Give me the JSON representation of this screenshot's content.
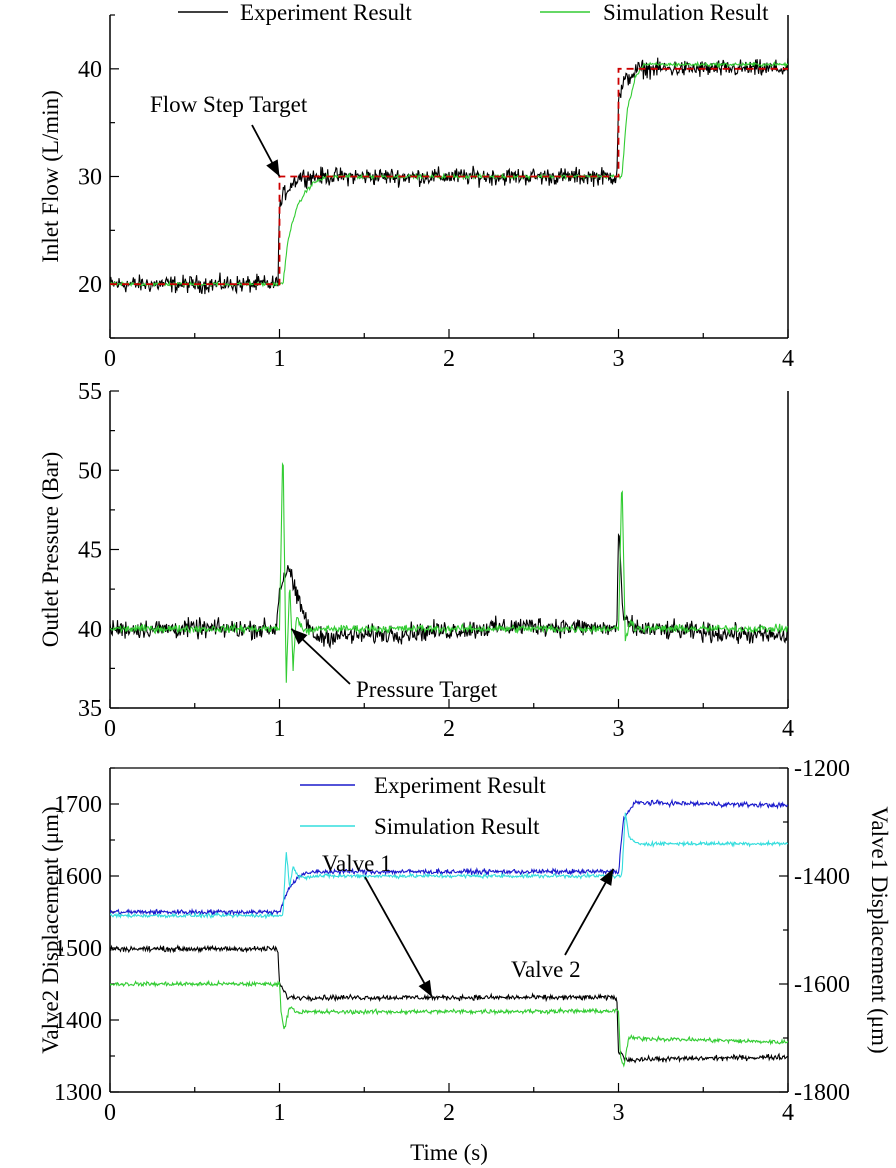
{
  "chart_data": [
    {
      "type": "line",
      "xlabel": "",
      "ylabel": "Inlet Flow (L/min)",
      "xlim": [
        0,
        4
      ],
      "ylim": [
        15,
        45
      ],
      "xticks": [
        "0",
        "1",
        "2",
        "3",
        "4"
      ],
      "yticks": [
        "20",
        "30",
        "40"
      ],
      "grid": false,
      "legend_position": "top",
      "legend": [
        "Experiment Result",
        "Simulation Result"
      ],
      "series": [
        {
          "name": "Experiment Result",
          "color": "#000000",
          "x": [
            0,
            0.99,
            1.0,
            1.03,
            1.08,
            1.12,
            2.99,
            3.0,
            3.03,
            3.08,
            3.12,
            4.0
          ],
          "y": [
            20,
            20,
            27,
            28.5,
            29.5,
            30,
            30,
            37,
            38.7,
            39.5,
            40,
            40
          ]
        },
        {
          "name": "Simulation Result",
          "color": "#33cc33",
          "x": [
            0,
            1.02,
            1.05,
            1.08,
            1.1,
            1.15,
            1.2,
            1.28,
            3.02,
            3.05,
            3.1,
            3.15,
            4.0
          ],
          "y": [
            20,
            20,
            24,
            26,
            27,
            28.5,
            29.4,
            30,
            30,
            36,
            39.3,
            40.4,
            40.4
          ]
        },
        {
          "name": "Flow Step Target",
          "color": "#cc0000",
          "style": "dashed",
          "x": [
            0,
            1.0,
            1.0,
            1.1,
            3.0,
            3.0,
            3.1,
            4.0
          ],
          "y": [
            20,
            20,
            30,
            30,
            30,
            40,
            40,
            40
          ]
        }
      ],
      "annotations": [
        {
          "text": "Flow Step Target",
          "points_to": {
            "x": 1.0,
            "y": 30
          }
        }
      ]
    },
    {
      "type": "line",
      "xlabel": "",
      "ylabel": "Outlet Pressure (Bar)",
      "xlim": [
        0,
        4
      ],
      "ylim": [
        35,
        55
      ],
      "xticks": [
        "0",
        "1",
        "2",
        "3",
        "4"
      ],
      "yticks": [
        "35",
        "40",
        "45",
        "50",
        "55"
      ],
      "grid": false,
      "series": [
        {
          "name": "Experiment Result",
          "color": "#000000",
          "x": [
            0,
            0.98,
            1.0,
            1.05,
            1.1,
            1.2,
            1.5,
            2.5,
            2.99,
            3.0,
            3.03,
            3.1,
            4.0
          ],
          "y": [
            40,
            40,
            42.5,
            44,
            42,
            39.5,
            39.6,
            40.2,
            40,
            46,
            40.5,
            40,
            39.5
          ]
        },
        {
          "name": "Simulation Result",
          "color": "#33cc33",
          "x": [
            0,
            1.0,
            1.02,
            1.04,
            1.06,
            1.08,
            1.1,
            1.15,
            1.25,
            3.0,
            3.02,
            3.04,
            3.07,
            3.1,
            4.0
          ],
          "y": [
            40,
            40,
            51.8,
            36.5,
            43,
            37.5,
            40.8,
            39.8,
            40,
            40,
            49.7,
            39.2,
            40.6,
            40,
            40
          ]
        }
      ],
      "annotations": [
        {
          "text": "Pressure Target",
          "points_to": {
            "x": 1.07,
            "y": 40
          }
        }
      ]
    },
    {
      "type": "line",
      "xlabel": "Time (s)",
      "ylabel": "Valve2 Displacement (μm)",
      "y2label": "Valve1 Displacement (μm)",
      "xlim": [
        0,
        4
      ],
      "ylim": [
        1300,
        1750
      ],
      "y2lim": [
        -1800,
        -1200
      ],
      "xticks": [
        "0",
        "1",
        "2",
        "3",
        "4"
      ],
      "yticks": [
        "1300",
        "1400",
        "1500",
        "1600",
        "1700"
      ],
      "y2ticks": [
        "-1800",
        "-1600",
        "-1400",
        "-1200"
      ],
      "grid": false,
      "legend_position": "top-center",
      "legend": [
        "Experiment Result",
        "Simulation Result"
      ],
      "series": [
        {
          "name": "Experiment Result",
          "axis": "left",
          "color": "#1a1acc",
          "x": [
            0,
            1.0,
            1.05,
            1.12,
            1.2,
            3.0,
            3.03,
            3.1,
            4.0
          ],
          "y": [
            1550,
            1550,
            1582,
            1600,
            1606,
            1606,
            1680,
            1702,
            1698
          ]
        },
        {
          "name": "Simulation Result",
          "axis": "left",
          "color": "#33dddd",
          "x": [
            0,
            1.02,
            1.04,
            1.06,
            1.08,
            1.12,
            1.2,
            3.02,
            3.04,
            3.06,
            3.1,
            4.0
          ],
          "y": [
            1545,
            1545,
            1635,
            1585,
            1612,
            1598,
            1600,
            1600,
            1690,
            1655,
            1645,
            1645
          ]
        },
        {
          "name": "Valve 1 Experiment",
          "axis": "right",
          "color": "#000000",
          "x": [
            0,
            0.99,
            1.0,
            1.05,
            2.99,
            3.0,
            3.05,
            4.0
          ],
          "y": [
            -1535,
            -1535,
            -1600,
            -1625,
            -1625,
            -1725,
            -1740,
            -1735
          ]
        },
        {
          "name": "Valve 1 Simulation",
          "axis": "right",
          "color": "#33cc33",
          "x": [
            0,
            1.0,
            1.01,
            1.03,
            1.06,
            1.1,
            3.0,
            3.01,
            3.03,
            3.06,
            4.0
          ],
          "y": [
            -1600,
            -1600,
            -1655,
            -1685,
            -1640,
            -1652,
            -1650,
            -1730,
            -1755,
            -1700,
            -1708
          ]
        }
      ],
      "annotations": [
        {
          "text": "Valve 1",
          "points_to": {
            "x": 1.9,
            "y": 1432
          }
        },
        {
          "text": "Valve 2",
          "points_to": {
            "x": 2.97,
            "y": 1610
          }
        }
      ]
    }
  ]
}
